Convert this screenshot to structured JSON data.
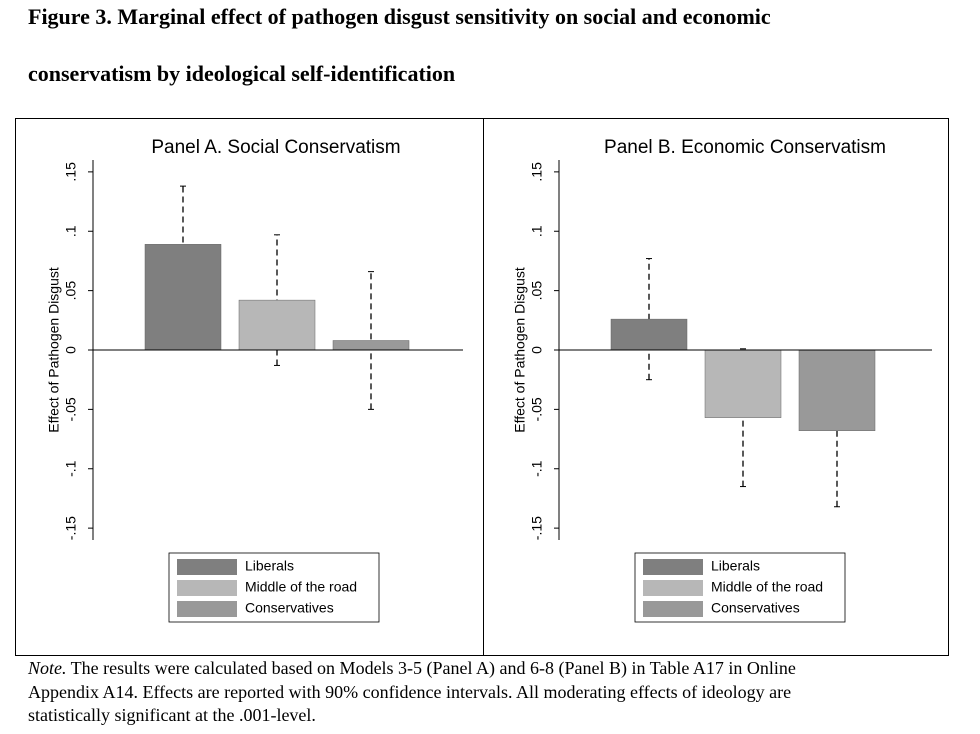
{
  "figure": {
    "title_lines": [
      "Figure 3. Marginal effect of pathogen disgust sensitivity on social and economic",
      "conservatism by ideological self-identification"
    ],
    "note_label": "Note.",
    "note_lines": [
      " The results were calculated based on Models 3-5 (Panel A) and 6-8 (Panel B) in Table A17 in Online",
      "Appendix A14. Effects are reported with 90% confidence intervals. All moderating effects of ideology are",
      "statistically significant at the .001-level."
    ]
  },
  "chart_data": [
    {
      "type": "bar",
      "title": "Panel A. Social Conservatism",
      "ylabel": "Effect of Pathogen Disgust",
      "ylim": [
        -0.16,
        0.16
      ],
      "yticks": [
        {
          "value": -0.15,
          "label": "-.15"
        },
        {
          "value": -0.1,
          "label": "-.1"
        },
        {
          "value": -0.05,
          "label": "-.05"
        },
        0,
        {
          "value": 0.05,
          "label": ".05"
        },
        {
          "value": 0.1,
          "label": ".1"
        },
        {
          "value": 0.15,
          "label": ".15"
        }
      ],
      "series": [
        {
          "name": "Liberals",
          "color": "#7f7f7f",
          "values": [
            0.089
          ],
          "errors": [
            0.049
          ]
        },
        {
          "name": "Middle of the road",
          "color": "#b7b7b7",
          "values": [
            0.042
          ],
          "errors": [
            0.055
          ]
        },
        {
          "name": "Conservatives",
          "color": "#999999",
          "values": [
            0.008
          ],
          "errors": [
            0.058
          ]
        }
      ]
    },
    {
      "type": "bar",
      "title": "Panel B. Economic Conservatism",
      "ylabel": "Effect of Pathogen Disgust",
      "ylim": [
        -0.16,
        0.16
      ],
      "yticks": [
        {
          "value": -0.15,
          "label": "-.15"
        },
        {
          "value": -0.1,
          "label": "-.1"
        },
        {
          "value": -0.05,
          "label": "-.05"
        },
        0,
        {
          "value": 0.05,
          "label": ".05"
        },
        {
          "value": 0.1,
          "label": ".1"
        },
        {
          "value": 0.15,
          "label": ".15"
        }
      ],
      "series": [
        {
          "name": "Liberals",
          "color": "#7f7f7f",
          "values": [
            0.026
          ],
          "errors": [
            0.051
          ]
        },
        {
          "name": "Middle of the road",
          "color": "#b7b7b7",
          "values": [
            -0.057
          ],
          "errors": [
            0.058
          ]
        },
        {
          "name": "Conservatives",
          "color": "#999999",
          "values": [
            -0.068
          ],
          "errors": [
            0.064
          ]
        }
      ]
    }
  ]
}
